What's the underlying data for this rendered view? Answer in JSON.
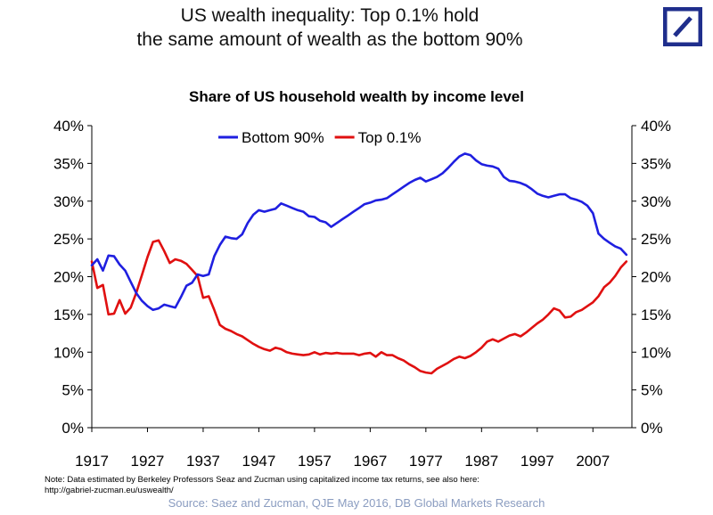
{
  "headline": {
    "line1": "US wealth inequality: Top 0.1% hold",
    "line2": "the same amount of wealth as the bottom 90%"
  },
  "brand": {
    "icon": "deutsche-bank-logo",
    "color": "#1f2e8c"
  },
  "chart_data": {
    "type": "line",
    "title": "Share of US household wealth by income level",
    "xlabel": "",
    "ylabel": "",
    "xlim": [
      1917,
      2014
    ],
    "ylim": [
      0,
      40
    ],
    "x_ticks": [
      "1917",
      "1927",
      "1937",
      "1947",
      "1957",
      "1967",
      "1977",
      "1987",
      "1997",
      "2007"
    ],
    "y_ticks_left": [
      "0%",
      "5%",
      "10%",
      "15%",
      "20%",
      "25%",
      "30%",
      "35%",
      "40%"
    ],
    "y_ticks_right": [
      "0%",
      "5%",
      "10%",
      "15%",
      "20%",
      "25%",
      "30%",
      "35%",
      "40%"
    ],
    "grid": false,
    "legend_position": "top-center",
    "series": [
      {
        "name": "Bottom 90%",
        "color": "#1f1fe0",
        "points": [
          [
            1917,
            21.5
          ],
          [
            1918,
            22.3
          ],
          [
            1919,
            20.8
          ],
          [
            1920,
            22.8
          ],
          [
            1921,
            22.7
          ],
          [
            1922,
            21.6
          ],
          [
            1923,
            20.8
          ],
          [
            1924,
            19.3
          ],
          [
            1925,
            17.8
          ],
          [
            1926,
            16.8
          ],
          [
            1927,
            16.1
          ],
          [
            1928,
            15.6
          ],
          [
            1929,
            15.8
          ],
          [
            1930,
            16.3
          ],
          [
            1931,
            16.1
          ],
          [
            1932,
            15.9
          ],
          [
            1933,
            17.3
          ],
          [
            1934,
            18.8
          ],
          [
            1935,
            19.2
          ],
          [
            1936,
            20.3
          ],
          [
            1937,
            20.1
          ],
          [
            1938,
            20.3
          ],
          [
            1939,
            22.7
          ],
          [
            1940,
            24.2
          ],
          [
            1941,
            25.3
          ],
          [
            1942,
            25.1
          ],
          [
            1943,
            25.0
          ],
          [
            1944,
            25.6
          ],
          [
            1945,
            27.1
          ],
          [
            1946,
            28.2
          ],
          [
            1947,
            28.8
          ],
          [
            1948,
            28.6
          ],
          [
            1949,
            28.8
          ],
          [
            1950,
            29.0
          ],
          [
            1951,
            29.7
          ],
          [
            1952,
            29.4
          ],
          [
            1953,
            29.1
          ],
          [
            1954,
            28.8
          ],
          [
            1955,
            28.6
          ],
          [
            1956,
            28.0
          ],
          [
            1957,
            27.9
          ],
          [
            1958,
            27.4
          ],
          [
            1959,
            27.2
          ],
          [
            1960,
            26.6
          ],
          [
            1961,
            27.1
          ],
          [
            1962,
            27.6
          ],
          [
            1963,
            28.1
          ],
          [
            1964,
            28.6
          ],
          [
            1965,
            29.1
          ],
          [
            1966,
            29.6
          ],
          [
            1967,
            29.8
          ],
          [
            1968,
            30.1
          ],
          [
            1969,
            30.2
          ],
          [
            1970,
            30.4
          ],
          [
            1971,
            30.9
          ],
          [
            1972,
            31.4
          ],
          [
            1973,
            31.9
          ],
          [
            1974,
            32.4
          ],
          [
            1975,
            32.8
          ],
          [
            1976,
            33.1
          ],
          [
            1977,
            32.6
          ],
          [
            1978,
            32.9
          ],
          [
            1979,
            33.2
          ],
          [
            1980,
            33.7
          ],
          [
            1981,
            34.4
          ],
          [
            1982,
            35.2
          ],
          [
            1983,
            35.9
          ],
          [
            1984,
            36.3
          ],
          [
            1985,
            36.1
          ],
          [
            1986,
            35.4
          ],
          [
            1987,
            34.9
          ],
          [
            1988,
            34.7
          ],
          [
            1989,
            34.6
          ],
          [
            1990,
            34.3
          ],
          [
            1991,
            33.2
          ],
          [
            1992,
            32.7
          ],
          [
            1993,
            32.6
          ],
          [
            1994,
            32.4
          ],
          [
            1995,
            32.1
          ],
          [
            1996,
            31.6
          ],
          [
            1997,
            31.0
          ],
          [
            1998,
            30.7
          ],
          [
            1999,
            30.5
          ],
          [
            2000,
            30.7
          ],
          [
            2001,
            30.9
          ],
          [
            2002,
            30.9
          ],
          [
            2003,
            30.4
          ],
          [
            2004,
            30.2
          ],
          [
            2005,
            29.9
          ],
          [
            2006,
            29.4
          ],
          [
            2007,
            28.4
          ],
          [
            2008,
            25.7
          ],
          [
            2009,
            25.0
          ],
          [
            2010,
            24.5
          ],
          [
            2011,
            24.0
          ],
          [
            2012,
            23.7
          ],
          [
            2013,
            22.9
          ]
        ]
      },
      {
        "name": "Top 0.1%",
        "color": "#e01010",
        "points": [
          [
            1917,
            22.0
          ],
          [
            1918,
            18.5
          ],
          [
            1919,
            18.9
          ],
          [
            1920,
            15.0
          ],
          [
            1921,
            15.1
          ],
          [
            1922,
            16.9
          ],
          [
            1923,
            15.1
          ],
          [
            1924,
            15.9
          ],
          [
            1925,
            17.9
          ],
          [
            1926,
            20.2
          ],
          [
            1927,
            22.6
          ],
          [
            1928,
            24.6
          ],
          [
            1929,
            24.8
          ],
          [
            1930,
            23.4
          ],
          [
            1931,
            21.8
          ],
          [
            1932,
            22.3
          ],
          [
            1933,
            22.1
          ],
          [
            1934,
            21.7
          ],
          [
            1935,
            20.9
          ],
          [
            1936,
            20.1
          ],
          [
            1937,
            17.2
          ],
          [
            1938,
            17.4
          ],
          [
            1939,
            15.6
          ],
          [
            1940,
            13.6
          ],
          [
            1941,
            13.1
          ],
          [
            1942,
            12.8
          ],
          [
            1943,
            12.4
          ],
          [
            1944,
            12.1
          ],
          [
            1945,
            11.6
          ],
          [
            1946,
            11.1
          ],
          [
            1947,
            10.7
          ],
          [
            1948,
            10.4
          ],
          [
            1949,
            10.2
          ],
          [
            1950,
            10.6
          ],
          [
            1951,
            10.4
          ],
          [
            1952,
            10.0
          ],
          [
            1953,
            9.8
          ],
          [
            1954,
            9.7
          ],
          [
            1955,
            9.6
          ],
          [
            1956,
            9.7
          ],
          [
            1957,
            10.0
          ],
          [
            1958,
            9.7
          ],
          [
            1959,
            9.9
          ],
          [
            1960,
            9.8
          ],
          [
            1961,
            9.9
          ],
          [
            1962,
            9.8
          ],
          [
            1963,
            9.8
          ],
          [
            1964,
            9.8
          ],
          [
            1965,
            9.6
          ],
          [
            1966,
            9.8
          ],
          [
            1967,
            9.9
          ],
          [
            1968,
            9.4
          ],
          [
            1969,
            10.0
          ],
          [
            1970,
            9.6
          ],
          [
            1971,
            9.6
          ],
          [
            1972,
            9.2
          ],
          [
            1973,
            8.9
          ],
          [
            1974,
            8.4
          ],
          [
            1975,
            8.0
          ],
          [
            1976,
            7.5
          ],
          [
            1977,
            7.3
          ],
          [
            1978,
            7.2
          ],
          [
            1979,
            7.8
          ],
          [
            1980,
            8.2
          ],
          [
            1981,
            8.6
          ],
          [
            1982,
            9.1
          ],
          [
            1983,
            9.4
          ],
          [
            1984,
            9.2
          ],
          [
            1985,
            9.5
          ],
          [
            1986,
            10.0
          ],
          [
            1987,
            10.6
          ],
          [
            1988,
            11.4
          ],
          [
            1989,
            11.7
          ],
          [
            1990,
            11.4
          ],
          [
            1991,
            11.8
          ],
          [
            1992,
            12.2
          ],
          [
            1993,
            12.4
          ],
          [
            1994,
            12.1
          ],
          [
            1995,
            12.6
          ],
          [
            1996,
            13.2
          ],
          [
            1997,
            13.8
          ],
          [
            1998,
            14.3
          ],
          [
            1999,
            15.0
          ],
          [
            2000,
            15.8
          ],
          [
            2001,
            15.5
          ],
          [
            2002,
            14.6
          ],
          [
            2003,
            14.7
          ],
          [
            2004,
            15.3
          ],
          [
            2005,
            15.6
          ],
          [
            2006,
            16.1
          ],
          [
            2007,
            16.6
          ],
          [
            2008,
            17.4
          ],
          [
            2009,
            18.6
          ],
          [
            2010,
            19.2
          ],
          [
            2011,
            20.1
          ],
          [
            2012,
            21.2
          ],
          [
            2013,
            22.0
          ]
        ]
      }
    ]
  },
  "footnote": {
    "line1": "Note: Data estimated by Berkeley Professors Seaz and Zucman using capitalized income tax returns, see also here:",
    "line2": "http://gabriel-zucman.eu/uswealth/"
  },
  "source": "Source: Saez and Zucman, QJE May 2016, DB Global Markets Research"
}
